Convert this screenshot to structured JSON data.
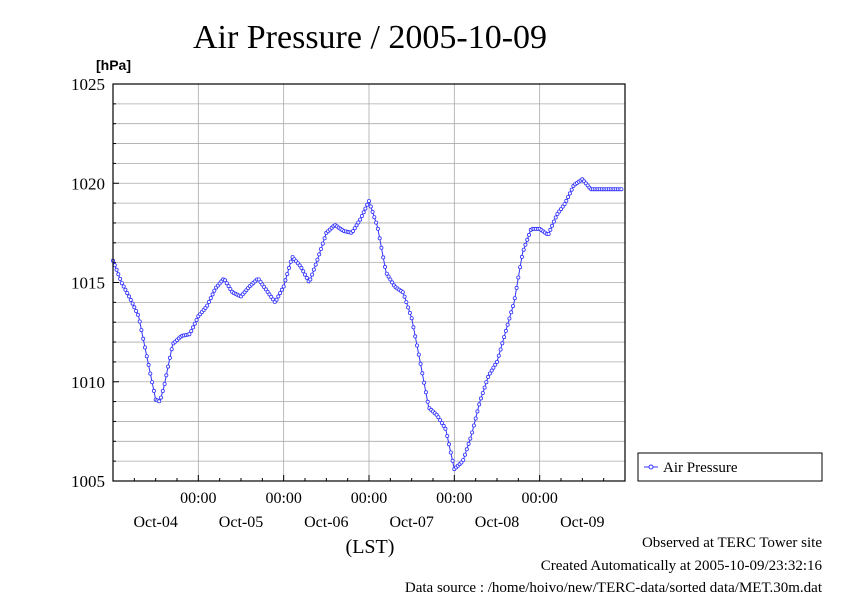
{
  "chart_data": {
    "type": "line",
    "title": "Air Pressure / 2005-10-09",
    "ylabel": "[hPa]",
    "xlabel": "(LST)",
    "ylim": [
      1005,
      1025
    ],
    "yticks": [
      1005,
      1010,
      1015,
      1020,
      1025
    ],
    "time_ticks": [
      "00:00",
      "00:00",
      "00:00",
      "00:00",
      "00:00"
    ],
    "date_labels": [
      "Oct-04",
      "Oct-05",
      "Oct-06",
      "Oct-07",
      "Oct-08",
      "Oct-09"
    ],
    "x_unit": "days since plot start (2005-10-04 00:00 LST)",
    "xlim": [
      0,
      6
    ],
    "grid": true,
    "legend": "right",
    "series": [
      {
        "name": "Air Pressure",
        "color": "#3333ff",
        "x": [
          0.0,
          0.1,
          0.2,
          0.3,
          0.4,
          0.5,
          0.55,
          0.6,
          0.7,
          0.8,
          0.9,
          1.0,
          1.1,
          1.2,
          1.3,
          1.4,
          1.5,
          1.6,
          1.7,
          1.8,
          1.9,
          2.0,
          2.1,
          2.2,
          2.3,
          2.4,
          2.5,
          2.6,
          2.7,
          2.8,
          2.9,
          3.0,
          3.1,
          3.2,
          3.3,
          3.4,
          3.5,
          3.6,
          3.7,
          3.8,
          3.9,
          4.0,
          4.1,
          4.2,
          4.3,
          4.4,
          4.5,
          4.6,
          4.7,
          4.8,
          4.9,
          5.0,
          5.1,
          5.2,
          5.3,
          5.4,
          5.5,
          5.6,
          5.7,
          5.8,
          5.9,
          5.97
        ],
        "values": [
          1016.1,
          1015.0,
          1014.2,
          1013.3,
          1011.2,
          1009.1,
          1009.0,
          1009.8,
          1011.9,
          1012.3,
          1012.4,
          1013.3,
          1013.8,
          1014.7,
          1015.2,
          1014.5,
          1014.3,
          1014.8,
          1015.2,
          1014.6,
          1014.0,
          1014.8,
          1016.3,
          1015.8,
          1015.0,
          1016.2,
          1017.5,
          1017.9,
          1017.6,
          1017.5,
          1018.2,
          1019.1,
          1017.8,
          1015.5,
          1014.8,
          1014.5,
          1013.2,
          1011.0,
          1008.7,
          1008.3,
          1007.6,
          1005.6,
          1006.0,
          1007.3,
          1009.0,
          1010.3,
          1011.0,
          1012.5,
          1014.0,
          1016.5,
          1017.7,
          1017.7,
          1017.4,
          1018.4,
          1019.0,
          1019.9,
          1020.2,
          1019.7,
          1019.7,
          1019.7,
          1019.7,
          1019.7
        ]
      }
    ]
  },
  "footer": {
    "line1": "Observed at TERC Tower site",
    "line2": "Created Automatically at 2005-10-09/23:32:16",
    "line3": "Data source : /home/hoivo/new/TERC-data/sorted  data/MET.30m.dat"
  }
}
